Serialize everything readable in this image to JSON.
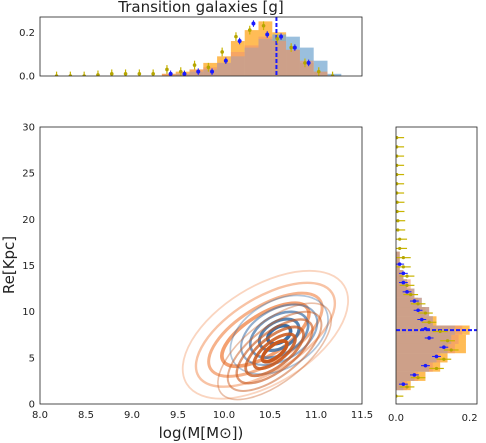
{
  "chart_data": [
    {
      "type": "bar",
      "panel": "top",
      "title": "Transition galaxies [g]",
      "x_bins": [
        8.2,
        8.35,
        8.5,
        8.65,
        8.8,
        8.95,
        9.1,
        9.25,
        9.4,
        9.55,
        9.7,
        9.85,
        10.0,
        10.15,
        10.3,
        10.45,
        10.6,
        10.75,
        10.9,
        11.05,
        11.2
      ],
      "series": [
        {
          "values": [
            0,
            0,
            0,
            0,
            0,
            0,
            0,
            0,
            0.01,
            0.02,
            0.03,
            0.06,
            0.09,
            0.16,
            0.21,
            0.25,
            0.2,
            0.12,
            0.06,
            0.02,
            0.0
          ]
        },
        {
          "values": [
            0,
            0,
            0,
            0,
            0,
            0,
            0,
            0,
            0.0,
            0.01,
            0.02,
            0.03,
            0.06,
            0.09,
            0.13,
            0.17,
            0.19,
            0.18,
            0.13,
            0.07,
            0.01
          ]
        },
        {
          "values": [
            0,
            0,
            0,
            0,
            0,
            0,
            0,
            0,
            0.01,
            0.01,
            0.03,
            0.04,
            0.06,
            0.11,
            0.14,
            0.18,
            0.16,
            0.12,
            0.07,
            0.02,
            0.0
          ]
        }
      ],
      "markers_blue": [
        0,
        0,
        0,
        0,
        0,
        0,
        0,
        0,
        0.01,
        0.01,
        0.02,
        0.02,
        0.07,
        0.16,
        0.24,
        0.19,
        0.18,
        0.13,
        0.06,
        0.0,
        0.0
      ],
      "markers_olive": [
        0,
        0,
        0,
        0.005,
        0.01,
        0.01,
        0.01,
        0.01,
        0.03,
        0.02,
        0.05,
        0.04,
        0.11,
        0.18,
        0.21,
        0.23,
        0.17,
        0.13,
        0.06,
        0.02,
        0.0
      ],
      "vline_x": 10.57,
      "xlim": [
        8.0,
        11.5
      ],
      "ylim": [
        0,
        0.27
      ],
      "yticks": [
        "0.0",
        "0.2"
      ]
    },
    {
      "type": "contour",
      "panel": "main",
      "xlabel": "log(M[M⊙])",
      "ylabel": "Re[Kpc]",
      "xlim": [
        8.0,
        11.5
      ],
      "ylim": [
        0,
        30
      ],
      "xticks": [
        "8.0",
        "8.5",
        "9.0",
        "9.5",
        "10.0",
        "10.5",
        "11.0",
        "11.5"
      ],
      "yticks": [
        "0",
        "5",
        "10",
        "15",
        "20",
        "25",
        "30"
      ],
      "groups": [
        {
          "color": "#c9591e",
          "center": [
            10.55,
            5.7
          ],
          "rx": [
            0.18,
            0.3,
            0.42,
            0.55,
            0.68,
            0.82
          ],
          "ry": [
            1.2,
            2.0,
            2.9,
            3.8,
            4.8,
            6.0
          ],
          "angle": 52
        },
        {
          "color": "#3a6ea5",
          "center": [
            10.6,
            7.5
          ],
          "rx": [
            0.15,
            0.26,
            0.38,
            0.5,
            0.64
          ],
          "ry": [
            1.5,
            2.6,
            3.8,
            5.0,
            6.6
          ],
          "angle": 60
        },
        {
          "color": "#f4a070",
          "center": [
            10.45,
            7.5
          ],
          "rx": [
            0.6,
            0.78,
            0.95,
            1.12
          ],
          "ry": [
            4.0,
            5.5,
            7.2,
            9.5
          ],
          "angle": 58
        }
      ]
    },
    {
      "type": "barh",
      "panel": "right",
      "y_bins": [
        1,
        2,
        3,
        4,
        5,
        6,
        7,
        8,
        9,
        10,
        11,
        12,
        13,
        14,
        15,
        16,
        17,
        18,
        19,
        20,
        21,
        22,
        23,
        24,
        25,
        26,
        27,
        28,
        29
      ],
      "series": [
        {
          "values": [
            0.0,
            0.04,
            0.08,
            0.12,
            0.14,
            0.19,
            0.19,
            0.2,
            0.11,
            0.08,
            0.06,
            0.04,
            0.03,
            0.02,
            0.01,
            0.01,
            0,
            0,
            0,
            0,
            0,
            0,
            0,
            0,
            0,
            0,
            0,
            0,
            0
          ]
        },
        {
          "values": [
            0.0,
            0.02,
            0.05,
            0.09,
            0.11,
            0.14,
            0.15,
            0.16,
            0.1,
            0.09,
            0.07,
            0.05,
            0.03,
            0.02,
            0.01,
            0.01,
            0,
            0,
            0,
            0,
            0,
            0,
            0,
            0,
            0,
            0,
            0,
            0,
            0
          ]
        },
        {
          "values": [
            0.0,
            0.03,
            0.06,
            0.1,
            0.12,
            0.16,
            0.17,
            0.18,
            0.1,
            0.09,
            0.07,
            0.05,
            0.04,
            0.02,
            0.01,
            0.01,
            0,
            0,
            0,
            0,
            0,
            0,
            0,
            0,
            0,
            0,
            0,
            0,
            0
          ]
        }
      ],
      "markers_blue": [
        0.0,
        0.02,
        0.05,
        0.08,
        0.11,
        0.13,
        0.09,
        0.08,
        0.07,
        0.06,
        0.05,
        0.03,
        0.02,
        0.02,
        0.01,
        0.0,
        0.0,
        0.0,
        0.0,
        0.0,
        0.0,
        0.0,
        0.0,
        0,
        0,
        0,
        0,
        0,
        0
      ],
      "markers_olive": [
        0.0,
        0.03,
        0.06,
        0.11,
        0.13,
        0.15,
        0.14,
        0.12,
        0.09,
        0.08,
        0.06,
        0.04,
        0.03,
        0.03,
        0.02,
        0.02,
        0.01,
        0.01,
        0.005,
        0.005,
        0.003,
        0.003,
        0.002,
        0.002,
        0.002,
        0.002,
        0.002,
        0.002,
        0.002
      ],
      "hline_y": 8.0,
      "xlim": [
        0,
        0.22
      ],
      "ylim": [
        0,
        30
      ],
      "xticks": [
        "0.0",
        "0.2"
      ]
    }
  ]
}
